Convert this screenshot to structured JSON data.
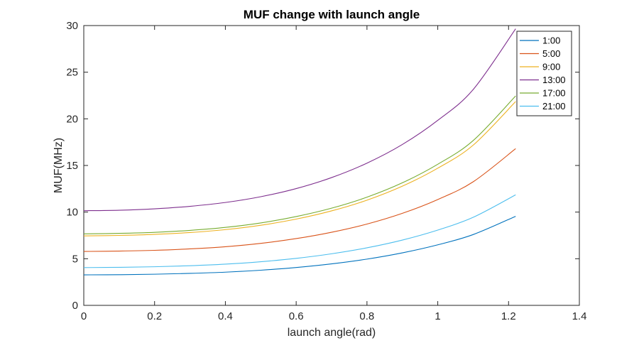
{
  "chart_data": {
    "type": "line",
    "title": "MUF change with launch angle",
    "xlabel": "launch angle(rad)",
    "ylabel": "MUF(MHz)",
    "xlim": [
      0,
      1.4
    ],
    "ylim": [
      0,
      30
    ],
    "x_ticks": [
      0,
      0.2,
      0.4,
      0.6,
      0.8,
      1,
      1.2,
      1.4
    ],
    "x_tick_labels": [
      "0",
      "0.2",
      "0.4",
      "0.6",
      "0.8",
      "1",
      "1.2",
      "1.4"
    ],
    "y_ticks": [
      0,
      5,
      10,
      15,
      20,
      25,
      30
    ],
    "y_tick_labels": [
      "0",
      "5",
      "10",
      "15",
      "20",
      "25",
      "30"
    ],
    "grid": false,
    "legend_position": "top-right",
    "x": [
      0,
      0.1,
      0.2,
      0.3,
      0.4,
      0.5,
      0.6,
      0.7,
      0.8,
      0.9,
      1.0,
      1.1,
      1.22
    ],
    "series": [
      {
        "name": "1:00",
        "color": "#0072BD",
        "values": [
          3.27,
          3.29,
          3.34,
          3.43,
          3.56,
          3.77,
          4.06,
          4.45,
          4.96,
          5.63,
          6.49,
          7.59,
          9.55
        ]
      },
      {
        "name": "5:00",
        "color": "#D95319",
        "values": [
          5.78,
          5.82,
          5.9,
          6.06,
          6.29,
          6.65,
          7.16,
          7.84,
          8.72,
          9.87,
          11.35,
          13.25,
          16.8
        ]
      },
      {
        "name": "9:00",
        "color": "#EDB120",
        "values": [
          7.45,
          7.5,
          7.61,
          7.81,
          8.12,
          8.59,
          9.25,
          10.13,
          11.28,
          12.78,
          14.71,
          17.18,
          21.85
        ]
      },
      {
        "name": "13:00",
        "color": "#7E2F8E",
        "values": [
          10.15,
          10.2,
          10.35,
          10.62,
          11.03,
          11.65,
          12.52,
          13.7,
          15.25,
          17.25,
          19.84,
          23.14,
          29.65
        ]
      },
      {
        "name": "17:00",
        "color": "#77AC30",
        "values": [
          7.67,
          7.72,
          7.83,
          8.04,
          8.36,
          8.84,
          9.52,
          10.42,
          11.6,
          13.14,
          15.13,
          17.67,
          22.45
        ]
      },
      {
        "name": "21:00",
        "color": "#4DBEEE",
        "values": [
          4.05,
          4.08,
          4.14,
          4.25,
          4.42,
          4.68,
          5.04,
          5.53,
          6.17,
          7.0,
          8.07,
          9.44,
          11.85
        ]
      }
    ]
  }
}
